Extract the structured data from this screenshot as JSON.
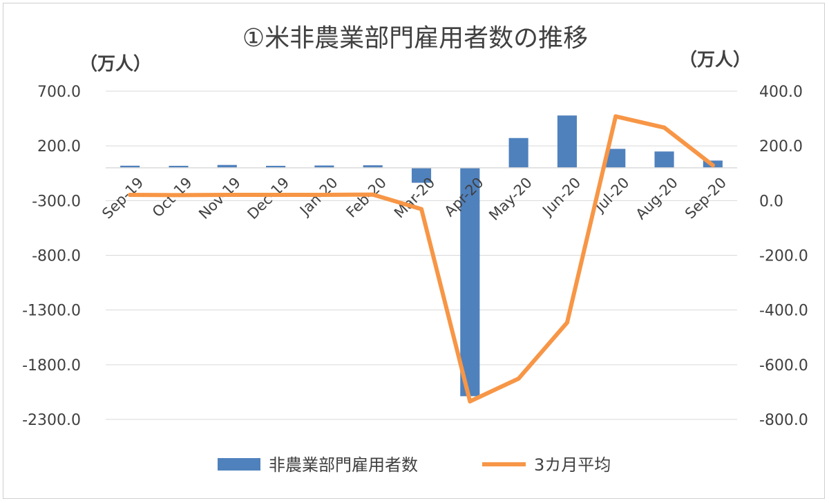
{
  "chart_data": {
    "type": "bar",
    "title": "①米非農業部門雇用者数の推移",
    "left_unit": "（万人）",
    "right_unit": "（万人）",
    "categories": [
      "Sep-19",
      "Oct-19",
      "Nov-19",
      "Dec-19",
      "Jan-20",
      "Feb-20",
      "Mar-20",
      "Apr-20",
      "May-20",
      "Jun-20",
      "Jul-20",
      "Aug-20",
      "Sep-20"
    ],
    "y_left": {
      "ylim": [
        -2300,
        700
      ],
      "ticks": [
        "700.0",
        "200.0",
        "-300.0",
        "-800.0",
        "-1300.0",
        "-1800.0",
        "-2300.0"
      ],
      "tick_values": [
        700,
        200,
        -300,
        -800,
        -1300,
        -1800,
        -2300
      ]
    },
    "y_right": {
      "ylim": [
        -800,
        400
      ],
      "ticks": [
        "400.0",
        "200.0",
        "0.0",
        "-200.0",
        "-400.0",
        "-600.0",
        "-800.0"
      ],
      "tick_values": [
        400,
        200,
        0,
        -200,
        -400,
        -600,
        -800
      ]
    },
    "series": [
      {
        "name": "非農業部門雇用者数",
        "type": "bar",
        "axis": "left",
        "color": "#4F81BD",
        "values": [
          19,
          18,
          26,
          18,
          21,
          23,
          -137,
          -2088,
          272,
          478,
          173,
          149,
          66
        ]
      },
      {
        "name": "3カ月平均",
        "type": "line",
        "axis": "right",
        "color": "#F79646",
        "values": [
          21,
          20,
          21,
          21,
          21,
          22,
          -31,
          -734,
          -651,
          -446,
          308,
          267,
          129
        ]
      }
    ],
    "grid": true,
    "legend_position": "bottom"
  }
}
